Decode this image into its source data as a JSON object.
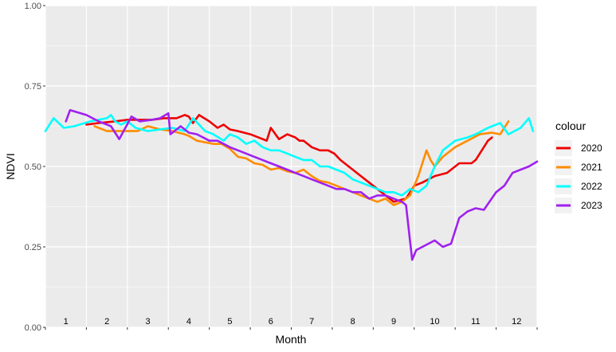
{
  "chart_data": {
    "type": "line",
    "xlabel": "Month",
    "ylabel": "NDVI",
    "ylim": [
      0,
      1
    ],
    "y_ticks": [
      "0.00",
      "0.25",
      "0.50",
      "0.75",
      "1.00"
    ],
    "x_range": [
      0.5,
      12.5
    ],
    "month_labels": [
      "1",
      "2",
      "3",
      "4",
      "5",
      "6",
      "7",
      "8",
      "9",
      "10",
      "11",
      "12"
    ],
    "grid": true,
    "legend": {
      "title": "colour",
      "position": "right"
    },
    "series": [
      {
        "name": "2020",
        "color": "#ee0000",
        "x": [
          1.5,
          1.8,
          2.2,
          2.5,
          2.8,
          3.1,
          3.4,
          3.7,
          3.9,
          4.0,
          4.1,
          4.25,
          4.5,
          4.7,
          4.85,
          5.0,
          5.2,
          5.5,
          5.7,
          5.9,
          6.0,
          6.2,
          6.4,
          6.6,
          6.7,
          6.8,
          7.0,
          7.2,
          7.4,
          7.55,
          7.7,
          7.9,
          8.0,
          8.2,
          8.4,
          8.6,
          8.8,
          9.0,
          9.3,
          9.5,
          9.7,
          10.0,
          10.3,
          10.6,
          10.9,
          11.0,
          11.3,
          11.4
        ],
        "y": [
          0.63,
          0.635,
          0.64,
          0.645,
          0.645,
          0.645,
          0.65,
          0.65,
          0.66,
          0.655,
          0.635,
          0.66,
          0.64,
          0.62,
          0.63,
          0.615,
          0.61,
          0.6,
          0.59,
          0.58,
          0.62,
          0.585,
          0.6,
          0.59,
          0.58,
          0.58,
          0.56,
          0.55,
          0.55,
          0.54,
          0.52,
          0.5,
          0.49,
          0.47,
          0.45,
          0.43,
          0.41,
          0.39,
          0.4,
          0.44,
          0.45,
          0.47,
          0.48,
          0.51,
          0.51,
          0.52,
          0.58,
          0.59
        ]
      },
      {
        "name": "2021",
        "color": "#ff8c00",
        "x": [
          1.7,
          2.0,
          2.3,
          2.5,
          2.75,
          3.0,
          3.3,
          3.6,
          3.9,
          4.0,
          4.2,
          4.4,
          4.6,
          4.8,
          5.0,
          5.2,
          5.4,
          5.6,
          5.8,
          6.0,
          6.2,
          6.4,
          6.6,
          6.8,
          7.0,
          7.2,
          7.4,
          7.6,
          7.8,
          8.0,
          8.2,
          8.4,
          8.6,
          8.8,
          9.0,
          9.2,
          9.4,
          9.5,
          9.6,
          9.8,
          9.9,
          10.0,
          10.2,
          10.5,
          10.8,
          11.1,
          11.4,
          11.6,
          11.8
        ],
        "y": [
          0.625,
          0.61,
          0.61,
          0.61,
          0.61,
          0.625,
          0.615,
          0.61,
          0.6,
          0.595,
          0.58,
          0.575,
          0.57,
          0.57,
          0.555,
          0.53,
          0.525,
          0.51,
          0.505,
          0.49,
          0.495,
          0.485,
          0.48,
          0.49,
          0.47,
          0.455,
          0.45,
          0.44,
          0.43,
          0.42,
          0.41,
          0.4,
          0.39,
          0.4,
          0.38,
          0.39,
          0.41,
          0.44,
          0.47,
          0.55,
          0.52,
          0.5,
          0.53,
          0.56,
          0.58,
          0.6,
          0.605,
          0.6,
          0.64
        ]
      },
      {
        "name": "2022",
        "color": "#00ffff",
        "x": [
          0.5,
          0.7,
          0.95,
          1.2,
          1.6,
          2.0,
          2.1,
          2.2,
          2.35,
          2.5,
          2.7,
          3.0,
          3.3,
          3.6,
          3.9,
          4.1,
          4.4,
          4.6,
          4.85,
          5.0,
          5.2,
          5.4,
          5.6,
          5.8,
          6.0,
          6.2,
          6.4,
          6.6,
          6.8,
          7.0,
          7.2,
          7.4,
          7.6,
          7.8,
          8.0,
          8.2,
          8.4,
          8.6,
          8.8,
          9.0,
          9.2,
          9.4,
          9.6,
          9.8,
          10.0,
          10.2,
          10.5,
          10.8,
          11.0,
          11.3,
          11.6,
          11.8,
          12.1,
          12.3,
          12.4
        ],
        "y": [
          0.61,
          0.65,
          0.62,
          0.625,
          0.64,
          0.65,
          0.66,
          0.64,
          0.63,
          0.64,
          0.62,
          0.61,
          0.615,
          0.62,
          0.61,
          0.65,
          0.61,
          0.6,
          0.58,
          0.6,
          0.59,
          0.57,
          0.58,
          0.56,
          0.55,
          0.55,
          0.54,
          0.53,
          0.52,
          0.52,
          0.5,
          0.5,
          0.49,
          0.48,
          0.46,
          0.45,
          0.44,
          0.43,
          0.42,
          0.42,
          0.41,
          0.43,
          0.42,
          0.44,
          0.5,
          0.55,
          0.58,
          0.59,
          0.6,
          0.62,
          0.635,
          0.6,
          0.62,
          0.65,
          0.61
        ]
      },
      {
        "name": "2023",
        "color": "#a020f0",
        "x": [
          1.0,
          1.1,
          1.5,
          1.8,
          2.1,
          2.3,
          2.6,
          2.8,
          3.1,
          3.3,
          3.5,
          3.55,
          3.8,
          4.0,
          4.2,
          4.5,
          4.7,
          5.0,
          5.2,
          5.4,
          5.6,
          5.8,
          6.0,
          6.2,
          6.4,
          6.6,
          6.8,
          7.0,
          7.2,
          7.4,
          7.6,
          7.8,
          8.0,
          8.2,
          8.4,
          8.6,
          8.8,
          9.0,
          9.2,
          9.3,
          9.45,
          9.55,
          9.7,
          10.0,
          10.2,
          10.4,
          10.6,
          10.8,
          11.0,
          11.2,
          11.5,
          11.7,
          11.9,
          12.1,
          12.3,
          12.5
        ],
        "y": [
          0.64,
          0.675,
          0.66,
          0.64,
          0.625,
          0.585,
          0.655,
          0.64,
          0.645,
          0.65,
          0.665,
          0.6,
          0.625,
          0.605,
          0.6,
          0.58,
          0.58,
          0.56,
          0.55,
          0.54,
          0.53,
          0.52,
          0.51,
          0.5,
          0.49,
          0.48,
          0.47,
          0.46,
          0.45,
          0.44,
          0.43,
          0.43,
          0.42,
          0.42,
          0.4,
          0.41,
          0.41,
          0.4,
          0.39,
          0.38,
          0.21,
          0.24,
          0.25,
          0.27,
          0.25,
          0.26,
          0.34,
          0.36,
          0.37,
          0.365,
          0.42,
          0.44,
          0.48,
          0.49,
          0.5,
          0.515
        ]
      }
    ]
  }
}
